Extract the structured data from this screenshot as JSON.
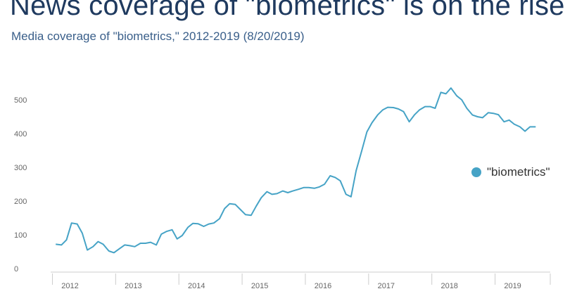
{
  "header": {
    "title": "News coverage of \"biometrics\" is on the rise",
    "subtitle": "Media coverage of \"biometrics,\" 2012-2019 (8/20/2019)"
  },
  "legend": {
    "label": "\"biometrics\"",
    "color": "#46a3c6"
  },
  "chart_data": {
    "type": "line",
    "title": "News coverage of \"biometrics\" is on the rise",
    "subtitle": "Media coverage of \"biometrics,\" 2012-2019 (8/20/2019)",
    "xlabel": "",
    "ylabel": "",
    "ylim": [
      0,
      550
    ],
    "xlim": [
      2011.75,
      2019.65
    ],
    "yticks": [
      0,
      100,
      200,
      300,
      400,
      500
    ],
    "xticks": [
      "2012",
      "2013",
      "2014",
      "2015",
      "2016",
      "2017",
      "2018",
      "2019"
    ],
    "grid": false,
    "legend_position": "right",
    "series": [
      {
        "name": "\"biometrics\"",
        "color": "#46a3c6",
        "points": [
          [
            2011.83,
            72
          ],
          [
            2011.92,
            70
          ],
          [
            2012.0,
            85
          ],
          [
            2012.08,
            135
          ],
          [
            2012.17,
            132
          ],
          [
            2012.25,
            105
          ],
          [
            2012.33,
            55
          ],
          [
            2012.42,
            65
          ],
          [
            2012.5,
            80
          ],
          [
            2012.58,
            72
          ],
          [
            2012.67,
            52
          ],
          [
            2012.75,
            47
          ],
          [
            2012.83,
            58
          ],
          [
            2012.92,
            70
          ],
          [
            2013.0,
            68
          ],
          [
            2013.08,
            65
          ],
          [
            2013.17,
            75
          ],
          [
            2013.25,
            75
          ],
          [
            2013.33,
            78
          ],
          [
            2013.42,
            70
          ],
          [
            2013.5,
            102
          ],
          [
            2013.58,
            110
          ],
          [
            2013.67,
            115
          ],
          [
            2013.75,
            88
          ],
          [
            2013.83,
            98
          ],
          [
            2013.92,
            122
          ],
          [
            2014.0,
            134
          ],
          [
            2014.08,
            133
          ],
          [
            2014.17,
            125
          ],
          [
            2014.25,
            132
          ],
          [
            2014.33,
            135
          ],
          [
            2014.42,
            148
          ],
          [
            2014.5,
            178
          ],
          [
            2014.58,
            192
          ],
          [
            2014.67,
            190
          ],
          [
            2014.75,
            175
          ],
          [
            2014.83,
            160
          ],
          [
            2014.92,
            158
          ],
          [
            2015.0,
            185
          ],
          [
            2015.08,
            210
          ],
          [
            2015.17,
            228
          ],
          [
            2015.25,
            220
          ],
          [
            2015.33,
            222
          ],
          [
            2015.42,
            230
          ],
          [
            2015.5,
            225
          ],
          [
            2015.58,
            230
          ],
          [
            2015.67,
            235
          ],
          [
            2015.75,
            240
          ],
          [
            2015.83,
            240
          ],
          [
            2015.92,
            238
          ],
          [
            2016.0,
            242
          ],
          [
            2016.08,
            250
          ],
          [
            2016.17,
            275
          ],
          [
            2016.25,
            270
          ],
          [
            2016.33,
            260
          ],
          [
            2016.42,
            220
          ],
          [
            2016.5,
            213
          ],
          [
            2016.58,
            290
          ],
          [
            2016.67,
            350
          ],
          [
            2016.75,
            405
          ],
          [
            2016.83,
            432
          ],
          [
            2016.92,
            455
          ],
          [
            2017.0,
            470
          ],
          [
            2017.08,
            478
          ],
          [
            2017.17,
            477
          ],
          [
            2017.25,
            473
          ],
          [
            2017.33,
            465
          ],
          [
            2017.42,
            435
          ],
          [
            2017.5,
            455
          ],
          [
            2017.58,
            470
          ],
          [
            2017.67,
            480
          ],
          [
            2017.75,
            480
          ],
          [
            2017.83,
            475
          ],
          [
            2017.92,
            522
          ],
          [
            2018.0,
            518
          ],
          [
            2018.08,
            535
          ],
          [
            2018.17,
            512
          ],
          [
            2018.25,
            500
          ],
          [
            2018.33,
            475
          ],
          [
            2018.42,
            455
          ],
          [
            2018.5,
            450
          ],
          [
            2018.58,
            447
          ],
          [
            2018.67,
            462
          ],
          [
            2018.75,
            460
          ],
          [
            2018.83,
            456
          ],
          [
            2018.92,
            435
          ],
          [
            2019.0,
            440
          ],
          [
            2019.08,
            428
          ],
          [
            2019.17,
            420
          ],
          [
            2019.25,
            407
          ],
          [
            2019.33,
            420
          ],
          [
            2019.42,
            420
          ]
        ]
      }
    ]
  }
}
